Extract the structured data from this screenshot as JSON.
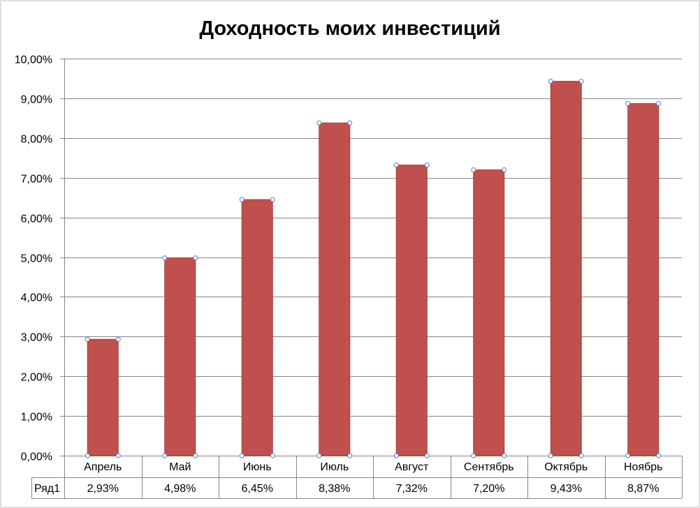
{
  "chart_data": {
    "type": "bar",
    "title": "Доходность моих инвестиций",
    "categories": [
      "Апрель",
      "Май",
      "Июнь",
      "Июль",
      "Август",
      "Сентябрь",
      "Октябрь",
      "Ноябрь"
    ],
    "series": [
      {
        "name": "Ряд1",
        "values": [
          2.93,
          4.98,
          6.45,
          8.38,
          7.32,
          7.2,
          9.43,
          8.87
        ],
        "value_labels": [
          "2,93%",
          "4,98%",
          "6,45%",
          "8,38%",
          "7,32%",
          "7,20%",
          "9,43%",
          "8,87%"
        ]
      }
    ],
    "ylim": [
      0,
      10
    ],
    "y_ticks": [
      0,
      1,
      2,
      3,
      4,
      5,
      6,
      7,
      8,
      9,
      10
    ],
    "y_tick_labels": [
      "0,00%",
      "1,00%",
      "2,00%",
      "3,00%",
      "4,00%",
      "5,00%",
      "6,00%",
      "7,00%",
      "8,00%",
      "9,00%",
      "10,00%"
    ],
    "grid": true,
    "legend": "data-table",
    "bar_color": "#c0504d",
    "bar_border_color": "#9e3f3b",
    "gridline_color": "#868686",
    "selection_handle_color": "#4f81bd"
  }
}
